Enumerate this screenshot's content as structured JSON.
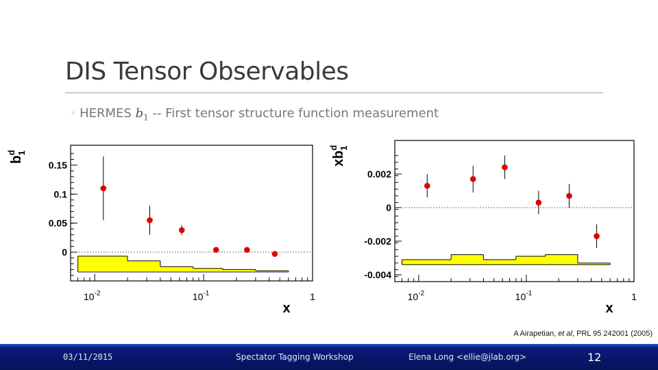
{
  "slide": {
    "title": "DIS Tensor Observables",
    "bullet_prefix": "HERMES",
    "bullet_math": "b",
    "bullet_math_sub": "1",
    "bullet_suffix": "-- First tensor structure function measurement",
    "citation_authors": "A Airapetian, ",
    "citation_etal": "et al",
    "citation_ref": ", PRL 95 242001 (2005)"
  },
  "footer": {
    "date": "03/11/2015",
    "event": "Spectator Tagging Workshop",
    "author": "Elena Long <ellie@jlab.org>",
    "page": "12"
  },
  "chart_data": [
    {
      "type": "scatter",
      "ylabel": "b",
      "ylabel_sup": "d",
      "ylabel_sub": "1",
      "xlabel": "x",
      "xscale": "log",
      "xlim": [
        0.006,
        1
      ],
      "ylim": [
        -0.05,
        0.18
      ],
      "yticks": [
        0,
        0.05,
        0.1,
        0.15
      ],
      "ytick_labels": [
        "0",
        "0.05",
        "0.1",
        "0.15"
      ],
      "xtick_labels": [
        {
          "base": "10",
          "exp": "-2"
        },
        {
          "base": "10",
          "exp": "-1"
        },
        {
          "base": "1",
          "exp": ""
        }
      ],
      "marker_color": "#e00000",
      "band_color": "#ffff00",
      "points": [
        {
          "x": 0.012,
          "y": 0.11,
          "err": 0.055
        },
        {
          "x": 0.032,
          "y": 0.055,
          "err": 0.025
        },
        {
          "x": 0.063,
          "y": 0.038,
          "err": 0.008
        },
        {
          "x": 0.13,
          "y": 0.004,
          "err": 0.003
        },
        {
          "x": 0.25,
          "y": 0.004,
          "err": 0.003
        },
        {
          "x": 0.45,
          "y": -0.003,
          "err": 0.003
        }
      ],
      "systematic_band": {
        "bin_edges": [
          0.007,
          0.02,
          0.04,
          0.08,
          0.15,
          0.3,
          0.6
        ],
        "tops": [
          -0.007,
          -0.015,
          -0.025,
          -0.028,
          -0.03,
          -0.032
        ]
      }
    },
    {
      "type": "scatter",
      "ylabel": "xb",
      "ylabel_sup": "d",
      "ylabel_sub": "1",
      "xlabel": "x",
      "xscale": "log",
      "xlim": [
        0.006,
        1
      ],
      "ylim": [
        -0.0045,
        0.0035
      ],
      "yticks": [
        -0.004,
        -0.002,
        0,
        0.002
      ],
      "ytick_labels": [
        "-0.004",
        "-0.002",
        "0",
        "0.002"
      ],
      "xtick_labels": [
        {
          "base": "10",
          "exp": "-2"
        },
        {
          "base": "10",
          "exp": "-1"
        },
        {
          "base": "1",
          "exp": ""
        }
      ],
      "marker_color": "#e00000",
      "band_color": "#ffff00",
      "points": [
        {
          "x": 0.012,
          "y": 0.0013,
          "err": 0.0007
        },
        {
          "x": 0.032,
          "y": 0.0017,
          "err": 0.0008
        },
        {
          "x": 0.063,
          "y": 0.0024,
          "err": 0.0007
        },
        {
          "x": 0.13,
          "y": 0.0003,
          "err": 0.0007
        },
        {
          "x": 0.25,
          "y": 0.0007,
          "err": 0.0007
        },
        {
          "x": 0.45,
          "y": -0.0017,
          "err": 0.0007
        }
      ],
      "systematic_band": {
        "bottom": -0.0034,
        "bin_edges": [
          0.007,
          0.02,
          0.04,
          0.08,
          0.15,
          0.3,
          0.6
        ],
        "tops": [
          -0.0031,
          -0.0028,
          -0.0031,
          -0.0029,
          -0.0028,
          -0.0033
        ]
      }
    }
  ]
}
